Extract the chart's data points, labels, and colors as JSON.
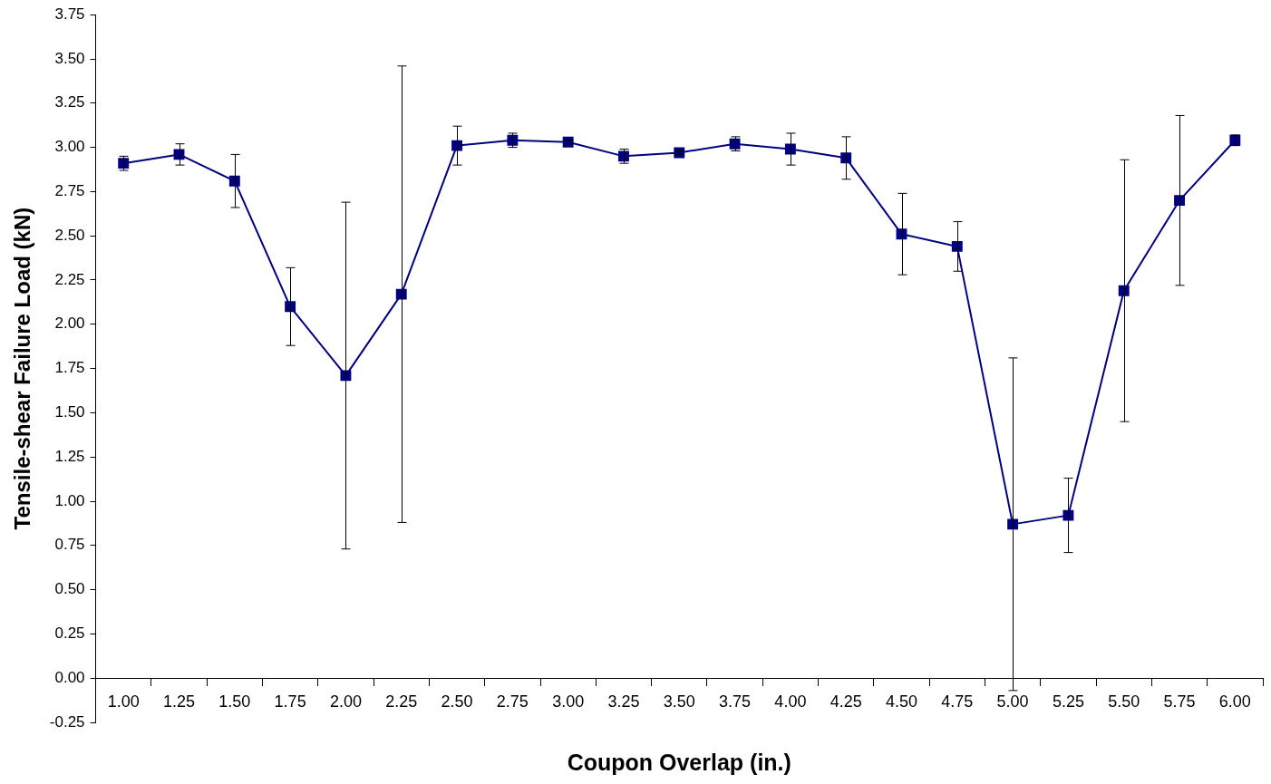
{
  "chart_data": {
    "type": "line",
    "xlabel": "Coupon Overlap (in.)",
    "ylabel": "Tensile-shear Failure Load (kN)",
    "categories": [
      "1.00",
      "1.25",
      "1.50",
      "1.75",
      "2.00",
      "2.25",
      "2.50",
      "2.75",
      "3.00",
      "3.25",
      "3.50",
      "3.75",
      "4.00",
      "4.25",
      "4.50",
      "4.75",
      "5.00",
      "5.25",
      "5.50",
      "5.75",
      "6.00"
    ],
    "values": [
      2.91,
      2.96,
      2.81,
      2.1,
      1.71,
      2.17,
      3.01,
      3.04,
      3.03,
      2.95,
      2.97,
      3.02,
      2.99,
      2.94,
      2.51,
      2.44,
      0.87,
      0.92,
      2.19,
      2.7,
      3.04
    ],
    "errors": [
      0.04,
      0.06,
      0.15,
      0.22,
      0.98,
      1.29,
      0.11,
      0.04,
      0.01,
      0.04,
      0.01,
      0.04,
      0.09,
      0.12,
      0.23,
      0.14,
      0.94,
      0.21,
      0.74,
      0.48,
      0.03
    ],
    "color": "#000080",
    "marker": "square",
    "line_style": "solid",
    "ylim": [
      -0.25,
      3.75
    ],
    "yticks": [
      {
        "value": -0.25,
        "label": "-0.25"
      },
      {
        "value": 0,
        "label": "0.00"
      },
      {
        "value": 0.25,
        "label": "0.25"
      },
      {
        "value": 0.5,
        "label": "0.50"
      },
      {
        "value": 0.75,
        "label": "0.75"
      },
      {
        "value": 1,
        "label": "1.00"
      },
      {
        "value": 1.25,
        "label": "1.25"
      },
      {
        "value": 1.5,
        "label": "1.50"
      },
      {
        "value": 1.75,
        "label": "1.75"
      },
      {
        "value": 2,
        "label": "2.00"
      },
      {
        "value": 2.25,
        "label": "2.25"
      },
      {
        "value": 2.5,
        "label": "2.50"
      },
      {
        "value": 2.75,
        "label": "2.75"
      },
      {
        "value": 3,
        "label": "3.00"
      },
      {
        "value": 3.25,
        "label": "3.25"
      },
      {
        "value": 3.5,
        "label": "3.50"
      },
      {
        "value": 3.75,
        "label": "3.75"
      }
    ]
  }
}
